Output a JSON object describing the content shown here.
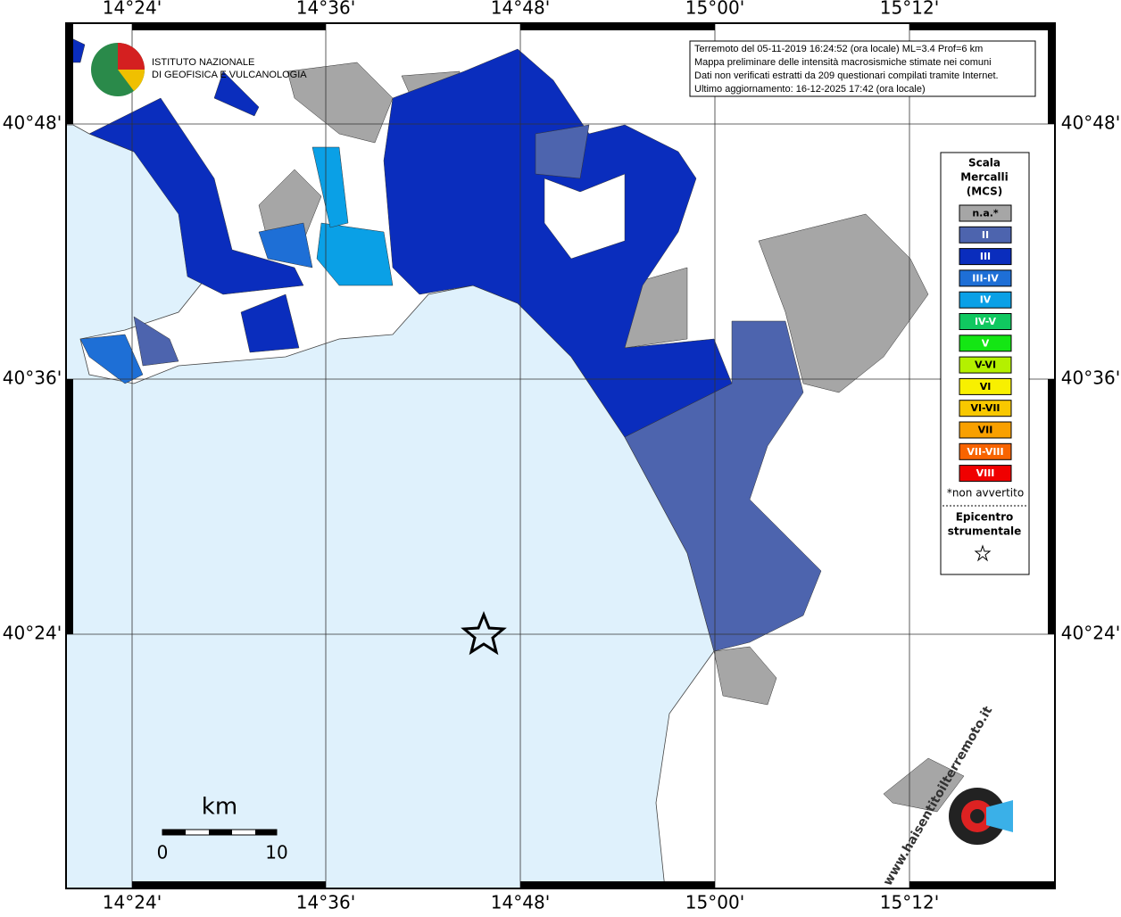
{
  "map": {
    "axis_labels": {
      "longitude": [
        "14°24'",
        "14°36'",
        "14°48'",
        "15°00'",
        "15°12'"
      ],
      "latitude": [
        "40°48'",
        "40°36'",
        "40°24'"
      ]
    },
    "info": [
      "Terremoto del 05-11-2019 16:24:52 (ora locale) ML=3.4 Prof=6 km",
      "Mappa preliminare delle intensità macrosismiche stimate nei comuni",
      "Dati non verificati estratti da 209 questionari compilati tramite Internet.",
      "Ultimo aggiornamento: 16-12-2025 17:42 (ora locale)"
    ],
    "logo": [
      "ISTITUTO NAZIONALE",
      "DI GEOFISICA E VULCANOLOGIA"
    ],
    "legend": {
      "title": [
        "Scala",
        "Mercalli",
        "(MCS)"
      ],
      "entries": [
        {
          "label": "n.a.*",
          "color": "#a6a6a6"
        },
        {
          "label": "II",
          "color": "#4d64ae"
        },
        {
          "label": "III",
          "color": "#0a2dbd"
        },
        {
          "label": "III-IV",
          "color": "#1e6fd6"
        },
        {
          "label": "IV",
          "color": "#0aa0e6"
        },
        {
          "label": "IV-V",
          "color": "#10c860"
        },
        {
          "label": "V",
          "color": "#14e614"
        },
        {
          "label": "V-VI",
          "color": "#b4f000"
        },
        {
          "label": "VI",
          "color": "#f8f000"
        },
        {
          "label": "VI-VII",
          "color": "#f8c800"
        },
        {
          "label": "VII",
          "color": "#f8a000"
        },
        {
          "label": "VII-VIII",
          "color": "#f86400"
        },
        {
          "label": "VIII",
          "color": "#f00000"
        }
      ],
      "note": "*non avvertito",
      "epicenter": [
        "Epicentro",
        "strumentale"
      ]
    },
    "scale_bar": {
      "title": "km",
      "labels": [
        "0",
        "10"
      ]
    },
    "watermark": "www.haisentitoilterremoto.it"
  }
}
